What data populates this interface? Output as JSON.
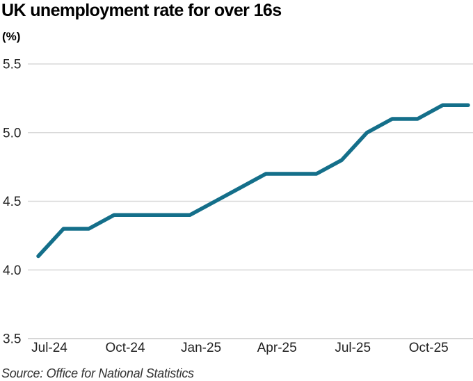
{
  "page": {
    "title": "UK unemployment rate for over 16s",
    "unit_label": "(%)",
    "source": "Source: Office for National Statistics"
  },
  "colors": {
    "line": "#146f8a",
    "grid": "#d9d9d9",
    "baseline": "#c9c9c9",
    "tick_text": "#222222"
  },
  "chart_data": {
    "type": "line",
    "title": "UK unemployment rate for over 16s",
    "ylabel": "(%)",
    "x": [
      "Jul-24",
      "Aug-24",
      "Sep-24",
      "Oct-24",
      "Nov-24",
      "Dec-24",
      "Jan-25",
      "Feb-25",
      "Mar-25",
      "Apr-25",
      "May-25",
      "Jun-25",
      "Jul-25",
      "Aug-25",
      "Sep-25",
      "Oct-25",
      "Nov-25",
      "Dec-25"
    ],
    "values": [
      4.1,
      4.3,
      4.3,
      4.4,
      4.4,
      4.4,
      4.4,
      4.5,
      4.6,
      4.7,
      4.7,
      4.7,
      4.8,
      5.0,
      5.1,
      5.1,
      5.2,
      5.2
    ],
    "x_tick_labels": [
      "Jul-24",
      "Oct-24",
      "Jan-25",
      "Apr-25",
      "Jul-25",
      "Oct-25"
    ],
    "x_tick_indices": [
      0,
      3,
      6,
      9,
      12,
      15
    ],
    "y_ticks": [
      3.5,
      4.0,
      4.5,
      5.0,
      5.5
    ],
    "ylim": [
      3.5,
      5.5
    ],
    "grid": "horizontal-only",
    "legend": "none",
    "source": "Source: Office for National Statistics"
  }
}
